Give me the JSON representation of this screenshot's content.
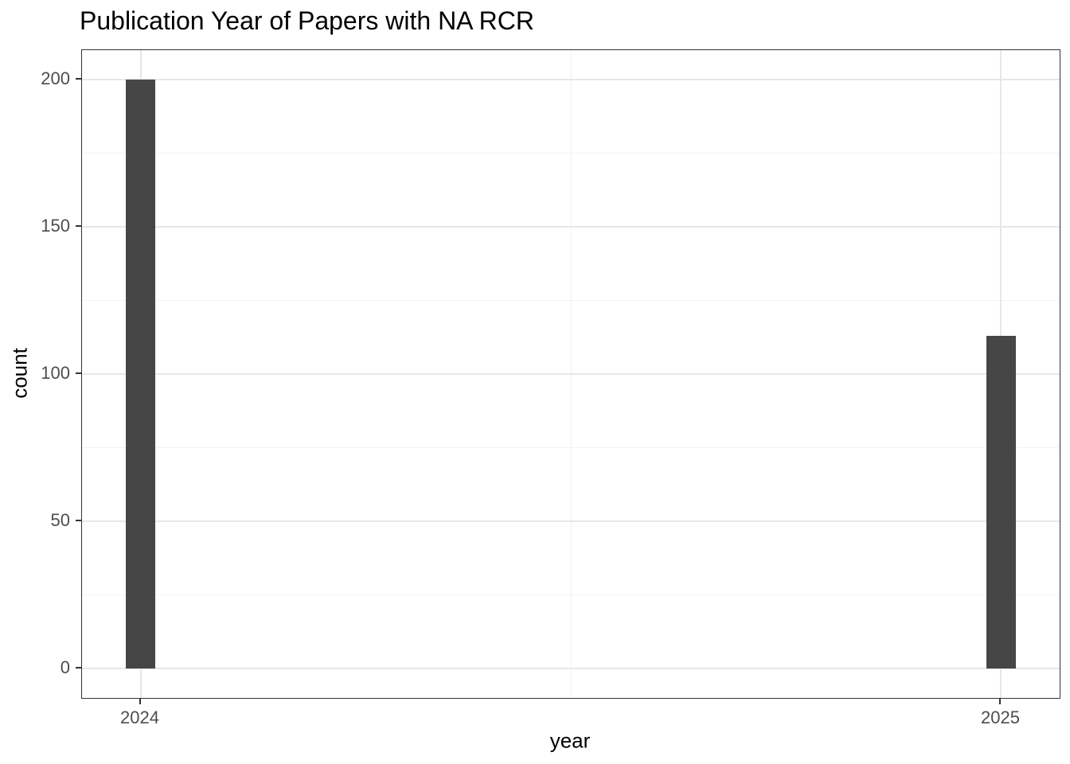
{
  "chart_data": {
    "type": "bar",
    "title": "Publication Year of Papers with NA RCR",
    "xlabel": "year",
    "ylabel": "count",
    "categories": [
      2024,
      2025
    ],
    "values": [
      200,
      113
    ],
    "x_ticks": [
      2024,
      2025
    ],
    "x_minor_breaks": [
      2024.5
    ],
    "y_ticks_major": [
      0,
      50,
      100,
      150,
      200
    ],
    "y_ticks_minor": [
      25,
      75,
      125,
      175
    ],
    "xlim": [
      2023.932,
      2025.068
    ],
    "ylim": [
      -10,
      210
    ],
    "bar_width_units": 0.034,
    "grid": true,
    "legend": "none",
    "colors": {
      "bar": "#464646",
      "grid_major": "#e7e7e7",
      "grid_minor": "#f2f2f2",
      "panel_border": "#333333",
      "tick_mark": "#333333",
      "axis_text": "#4d4d4d",
      "title_text": "#000000",
      "background": "#ffffff"
    }
  }
}
